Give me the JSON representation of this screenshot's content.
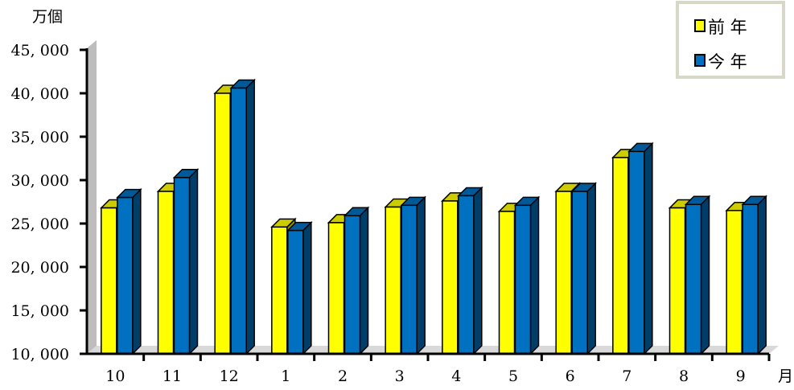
{
  "chart_data": {
    "type": "bar",
    "bar_style": "3d",
    "y_unit": "万個",
    "x_unit": "月",
    "categories": [
      "10",
      "11",
      "12",
      "1",
      "2",
      "3",
      "4",
      "5",
      "6",
      "7",
      "8",
      "9"
    ],
    "series": [
      {
        "name": "前 年",
        "color": "#ffff00",
        "values": [
          26800,
          28700,
          40000,
          24600,
          25100,
          26900,
          27600,
          26400,
          28700,
          32600,
          26800,
          26500
        ]
      },
      {
        "name": "今 年",
        "color": "#0070c0",
        "values": [
          28000,
          30300,
          40600,
          24200,
          25900,
          27100,
          28200,
          27100,
          28700,
          33300,
          27200,
          27200
        ]
      }
    ],
    "ylim": [
      10000,
      45000
    ],
    "yticks": [
      10000,
      15000,
      20000,
      25000,
      30000,
      35000,
      40000,
      45000
    ],
    "ytick_labels": [
      "10, 000",
      "15, 000",
      "20, 000",
      "25, 000",
      "30, 000",
      "35, 000",
      "40, 000",
      "45, 000"
    ],
    "grid": false,
    "legend_position": "top-right"
  }
}
